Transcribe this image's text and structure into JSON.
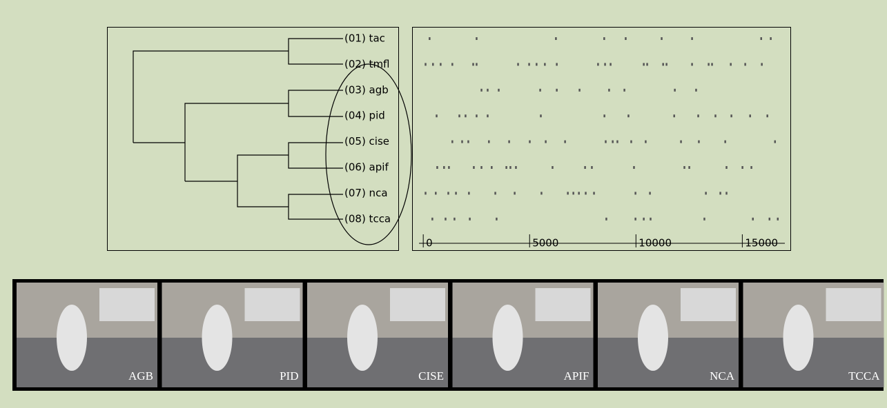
{
  "chart_data": {
    "type": "raster",
    "leaves": [
      "(01) tac",
      "(02) tmfl",
      "(03) agb",
      "(04) pid",
      "(05) cise",
      "(06) apif",
      "(07) nca",
      "(08) tcca"
    ],
    "xlim": [
      -200,
      17000
    ],
    "xticks": [
      0,
      5000,
      10000,
      15000
    ],
    "color": "#555555",
    "events": [
      [
        290,
        2500,
        6230,
        8500,
        9510,
        11200,
        12630,
        15880,
        16330
      ],
      [
        100,
        450,
        810,
        1360,
        2340,
        2500,
        4450,
        4970,
        5320,
        5710,
        6270,
        8210,
        8540,
        8800,
        10360,
        10520,
        11270,
        11430,
        12630,
        13410,
        13570,
        14450,
        15130,
        15910
      ],
      [
        2730,
        3020,
        3540,
        5490,
        6270,
        7340,
        8730,
        9450,
        11820,
        12820
      ],
      [
        620,
        1690,
        1980,
        2500,
        3020,
        5520,
        8510,
        9640,
        11790,
        12920,
        13730,
        14480,
        15360,
        16170
      ],
      [
        1360,
        1820,
        2110,
        3080,
        4030,
        5000,
        5750,
        6660,
        8570,
        8900,
        9120,
        9770,
        10450,
        12110,
        12950,
        14190,
        16530
      ],
      [
        650,
        970,
        1200,
        2370,
        2730,
        3210,
        3900,
        4090,
        4350,
        6070,
        7600,
        7920,
        9900,
        12270,
        12500,
        14250,
        15000,
        15420
      ],
      [
        100,
        580,
        1170,
        1530,
        2140,
        3380,
        4290,
        5550,
        6790,
        7050,
        7310,
        7630,
        8020,
        9970,
        10650,
        13280,
        13960,
        14250
      ],
      [
        420,
        1040,
        1460,
        2180,
        3440,
        8600,
        9970,
        10360,
        10680,
        13210,
        15490,
        16270,
        16660
      ]
    ]
  },
  "photos": [
    "AGB",
    "PID",
    "CISE",
    "APIF",
    "NCA",
    "TCCA"
  ]
}
